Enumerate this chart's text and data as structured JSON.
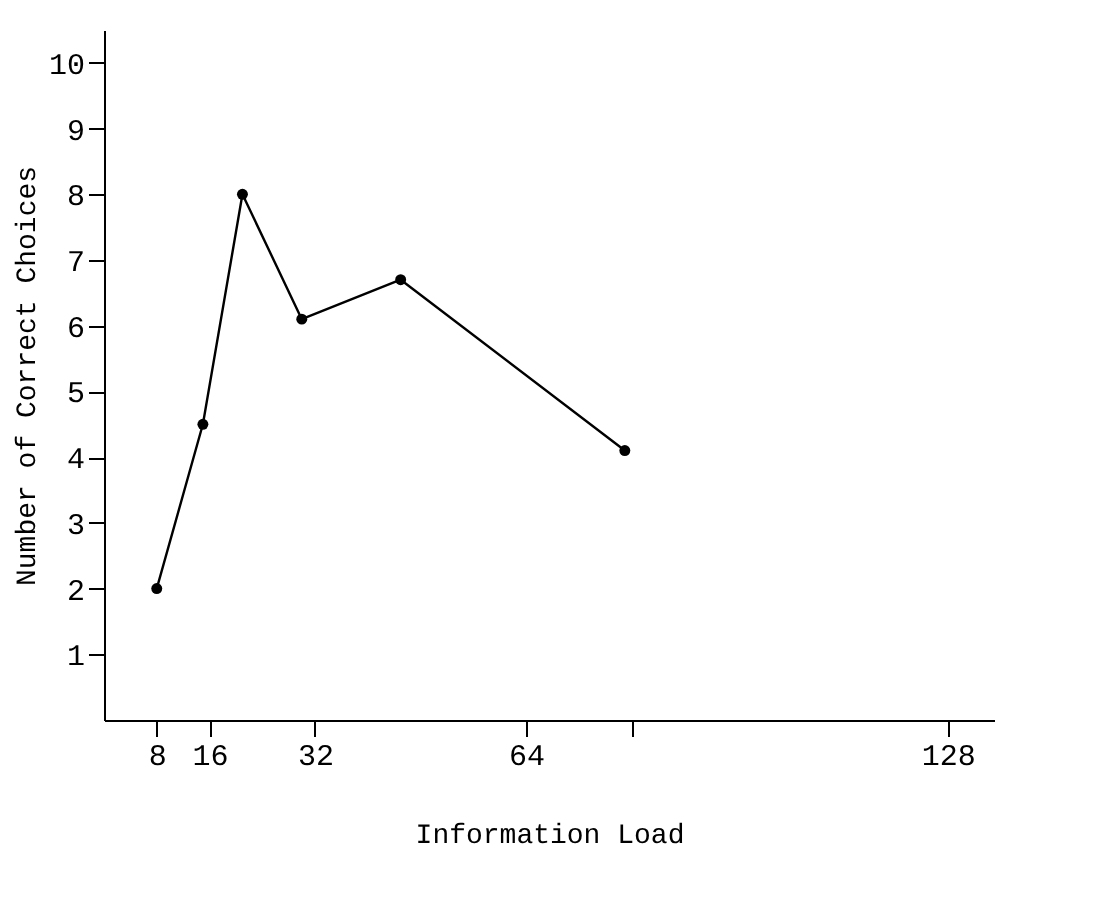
{
  "chart_data": {
    "type": "line",
    "xlabel": "Information Load",
    "ylabel": "Number of Correct Choices",
    "x": [
      8,
      15,
      21,
      30,
      45,
      79
    ],
    "series": [
      {
        "color": "#000000",
        "values": [
          2,
          4.5,
          8,
          6.1,
          6.7,
          4.1
        ]
      }
    ],
    "xlim": [
      0,
      135
    ],
    "xticks": [
      8,
      16,
      32,
      64,
      {
        "value": 80,
        "label": null
      },
      128
    ],
    "ylim": [
      0,
      10.5
    ],
    "yticks": [
      1,
      2,
      3,
      4,
      5,
      6,
      7,
      8,
      9,
      10
    ],
    "marker": "circle",
    "line_style": "solid",
    "grid": false
  }
}
